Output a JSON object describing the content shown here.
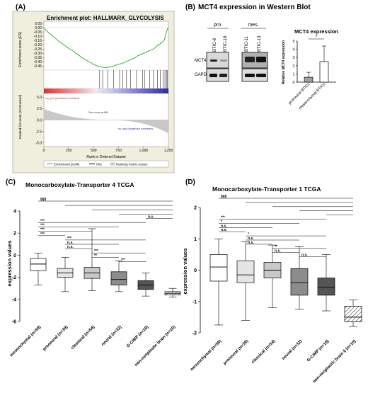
{
  "chart_data": [
    {
      "panel": "(A)",
      "type": "line",
      "title": "Enrichment plot: HALLMARK_GLYCOLYSIS",
      "ylabel": "Enrichment score (ES)",
      "ylabel2": "Ranked list metric (PreRanked)",
      "xlabel": "Rank in Ordered Dataset",
      "es_ticks": [
        "0.05",
        "0.00",
        "-0.05",
        "-0.10",
        "-0.15",
        "-0.20",
        "-0.25",
        "-0.30",
        "-0.35",
        "-0.40",
        "-0.45"
      ],
      "es_ylim": [
        -0.48,
        0.05
      ],
      "metric_ticks": [
        "5.0",
        "2.5",
        "0.0",
        "-2.5",
        "-5.0"
      ],
      "x_ticks": [
        "0",
        "250",
        "500",
        "750",
        "1,000",
        "1,250"
      ],
      "xlim": [
        0,
        1250
      ],
      "es_curve": {
        "x": [
          0,
          20,
          60,
          100,
          130,
          160,
          190,
          220,
          260,
          290,
          320,
          350,
          380,
          410,
          440,
          470,
          500,
          540,
          580,
          620,
          660,
          700,
          740,
          780,
          820,
          860,
          900,
          940,
          980,
          1020,
          1060,
          1100,
          1140,
          1180,
          1210,
          1230,
          1245
        ],
        "y": [
          0.0,
          -0.03,
          -0.07,
          -0.11,
          -0.14,
          -0.17,
          -0.19,
          -0.22,
          -0.25,
          -0.27,
          -0.3,
          -0.32,
          -0.35,
          -0.37,
          -0.39,
          -0.41,
          -0.43,
          -0.45,
          -0.46,
          -0.47,
          -0.46,
          -0.45,
          -0.43,
          -0.42,
          -0.4,
          -0.38,
          -0.36,
          -0.33,
          -0.31,
          -0.29,
          -0.27,
          -0.25,
          -0.21,
          -0.18,
          -0.14,
          -0.05,
          0.0
        ]
      },
      "hits": [
        560,
        590,
        640,
        700,
        760,
        790,
        830,
        870,
        930,
        990,
        1010,
        1060,
        1100,
        1140,
        1170,
        1200,
        1215,
        1230,
        1240
      ],
      "pos_label": "'na_pos' (positively correlated)",
      "neg_label": "'na_neg' (negatively correlated)",
      "zero_cross_label": "Zero cross at 656",
      "legend": [
        "Enrichment profile",
        "Hits",
        "Ranking metric scores"
      ]
    },
    {
      "panel": "(B)",
      "type": "bar",
      "title": "MCT4 expression in Western Blot",
      "inset_title": "MCT4 expression",
      "ylabel": "Relative MCT4 expression",
      "groups": [
        "pro.",
        "mes."
      ],
      "lanes": [
        "BTIC-8",
        "BTIC-18",
        "BTIC-11",
        "BTIC-13"
      ],
      "rows": [
        "MCT4",
        "GAPDH"
      ],
      "categories": [
        "proneural BTICs",
        "mesenchymal BTICs"
      ],
      "values": [
        0.6,
        2.5
      ],
      "errors": [
        0.6,
        1.9
      ],
      "ylim": [
        0,
        5
      ],
      "y_ticks": [
        "0",
        "1",
        "2",
        "3",
        "4",
        "5"
      ],
      "significance": "*"
    },
    {
      "panel": "(C)",
      "type": "box",
      "title": "Monocarboxylate-Transporter 4 TCGA",
      "ylabel": "expression values",
      "ylim": [
        -6,
        4
      ],
      "y_ticks": [
        "-6",
        "-4",
        "-2",
        "0",
        "2",
        "4"
      ],
      "categories": [
        "mesenchymal (n=58)",
        "proneural (n=39)",
        "classical (n=54)",
        "neural (n=32)",
        "G-CIMP (n=18)",
        "non-neoplastic brain (n=10)"
      ],
      "boxes": [
        {
          "min": -2.7,
          "q1": -1.4,
          "median": -0.8,
          "q3": -0.3,
          "max": 0.2,
          "fill": "#ffffff"
        },
        {
          "min": -3.3,
          "q1": -2.0,
          "median": -1.6,
          "q3": -1.2,
          "max": -0.2,
          "fill": "#e5e5e5"
        },
        {
          "min": -3.2,
          "q1": -2.1,
          "median": -1.6,
          "q3": -1.1,
          "max": 2.4,
          "fill": "#c8c8c8"
        },
        {
          "min": -3.3,
          "q1": -2.7,
          "median": -2.2,
          "q3": -1.5,
          "max": -0.5,
          "fill": "#8c8c8c"
        },
        {
          "min": -3.7,
          "q1": -3.1,
          "median": -2.7,
          "q3": -2.3,
          "max": -1.6,
          "fill": "#555555"
        },
        {
          "min": -3.8,
          "q1": -3.6,
          "median": -3.45,
          "q3": -3.3,
          "max": -3.0,
          "fill": "hatch"
        }
      ],
      "brackets": [
        {
          "from": 0,
          "to": 5,
          "label": "§§§"
        },
        {
          "from": 1,
          "to": 5,
          "label": ""
        },
        {
          "from": 2,
          "to": 5,
          "label": ""
        },
        {
          "from": 3,
          "to": 5,
          "label": ""
        },
        {
          "from": 4,
          "to": 5,
          "label": "n.s."
        },
        {
          "from": 0,
          "to": 4,
          "label": "***"
        },
        {
          "from": 0,
          "to": 3,
          "label": "***"
        },
        {
          "from": 0,
          "to": 2,
          "label": "***"
        },
        {
          "from": 0,
          "to": 1,
          "label": "***"
        },
        {
          "from": 1,
          "to": 4,
          "label": "***"
        },
        {
          "from": 1,
          "to": 3,
          "label": "n.s."
        },
        {
          "from": 1,
          "to": 2,
          "label": "n.s."
        },
        {
          "from": 2,
          "to": 4,
          "label": "***"
        },
        {
          "from": 2,
          "to": 3,
          "label": "**"
        },
        {
          "from": 3,
          "to": 4,
          "label": "***"
        }
      ]
    },
    {
      "panel": "(D)",
      "type": "box",
      "title": "Monocarboxylate-Transporter 1 TCGA",
      "ylabel": "expression values",
      "ylim": [
        -2,
        2
      ],
      "y_ticks": [
        "-2",
        "-1",
        "0",
        "1",
        "2"
      ],
      "categories": [
        "mesenchymal (n=58)",
        "proneural (n=39)",
        "classical (n=54)",
        "neural (n=32)",
        "G-CIMP (n=18)",
        "non-neoplastic brain § (n=10)"
      ],
      "boxes": [
        {
          "min": -1.75,
          "q1": -0.35,
          "median": 0.1,
          "q3": 0.5,
          "max": 1.0,
          "fill": "#ffffff"
        },
        {
          "min": -1.6,
          "q1": -0.4,
          "median": -0.15,
          "q3": 0.3,
          "max": 0.9,
          "fill": "#e5e5e5"
        },
        {
          "min": -1.2,
          "q1": -0.25,
          "median": 0.0,
          "q3": 0.25,
          "max": 0.8,
          "fill": "#c8c8c8"
        },
        {
          "min": -1.25,
          "q1": -0.8,
          "median": -0.4,
          "q3": 0.05,
          "max": 0.75,
          "fill": "#8c8c8c"
        },
        {
          "min": -1.3,
          "q1": -0.8,
          "median": -0.55,
          "q3": -0.25,
          "max": 0.5,
          "fill": "#555555"
        },
        {
          "min": -1.8,
          "q1": -1.65,
          "median": -1.5,
          "q3": -1.15,
          "max": -0.95,
          "fill": "hatch"
        }
      ],
      "brackets": [
        {
          "from": 0,
          "to": 5,
          "label": "§§§"
        },
        {
          "from": 1,
          "to": 5,
          "label": ""
        },
        {
          "from": 2,
          "to": 5,
          "label": ""
        },
        {
          "from": 3,
          "to": 5,
          "label": ""
        },
        {
          "from": 4,
          "to": 5,
          "label": ""
        },
        {
          "from": 0,
          "to": 4,
          "label": "***"
        },
        {
          "from": 0,
          "to": 3,
          "label": "*"
        },
        {
          "from": 0,
          "to": 2,
          "label": "n.s."
        },
        {
          "from": 0,
          "to": 1,
          "label": "n.s."
        },
        {
          "from": 1,
          "to": 4,
          "label": "*"
        },
        {
          "from": 1,
          "to": 3,
          "label": "n.s."
        },
        {
          "from": 1,
          "to": 2,
          "label": "n.s."
        },
        {
          "from": 2,
          "to": 4,
          "label": "**"
        },
        {
          "from": 2,
          "to": 3,
          "label": "n.s."
        },
        {
          "from": 3,
          "to": 4,
          "label": "n.s."
        }
      ]
    }
  ]
}
